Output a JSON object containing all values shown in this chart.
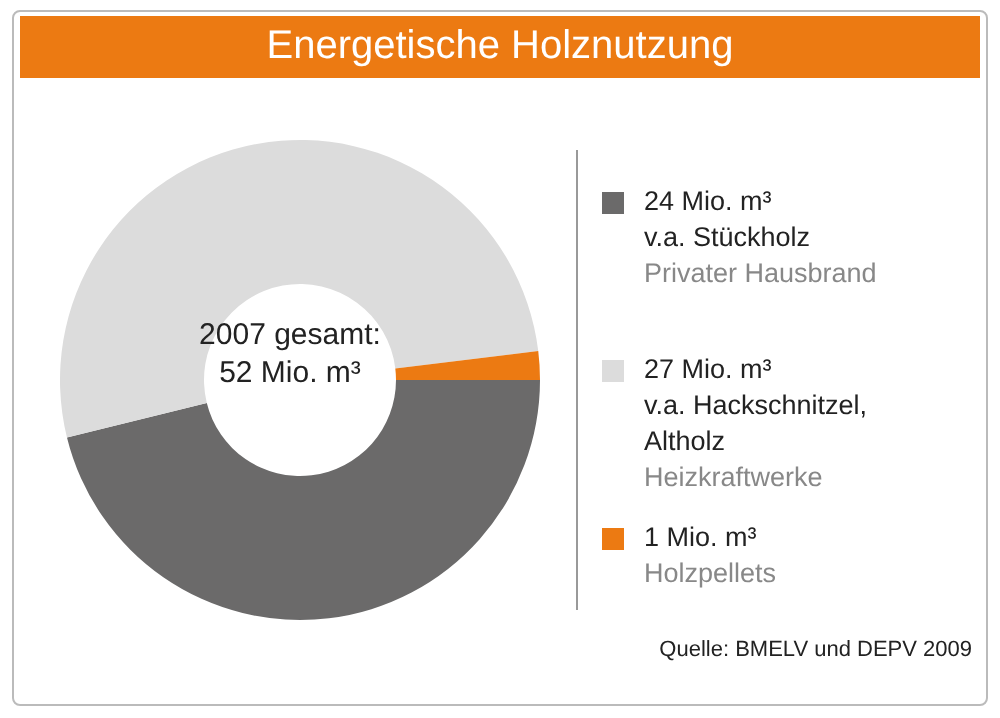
{
  "chart_data": {
    "type": "donut",
    "title": "Energetische Holznutzung",
    "categories": [
      "24 Mio. m³\nv.a. Stückholz\nPrivater Hausbrand",
      "27 Mio. m³\nv.a. Hackschnitzel, Altholz\nHeizkraftwerke",
      "1 Mio. m³\nHolzpellets"
    ],
    "values": [
      24,
      27,
      1
    ],
    "colors": [
      "#6b6a6a",
      "#dcdcdc",
      "#ec7a12"
    ],
    "legend": "right",
    "annotations": [
      "2007 gesamt:\n52 Mio. m³",
      "Quelle: BMELV und DEPV 2009"
    ]
  }
}
